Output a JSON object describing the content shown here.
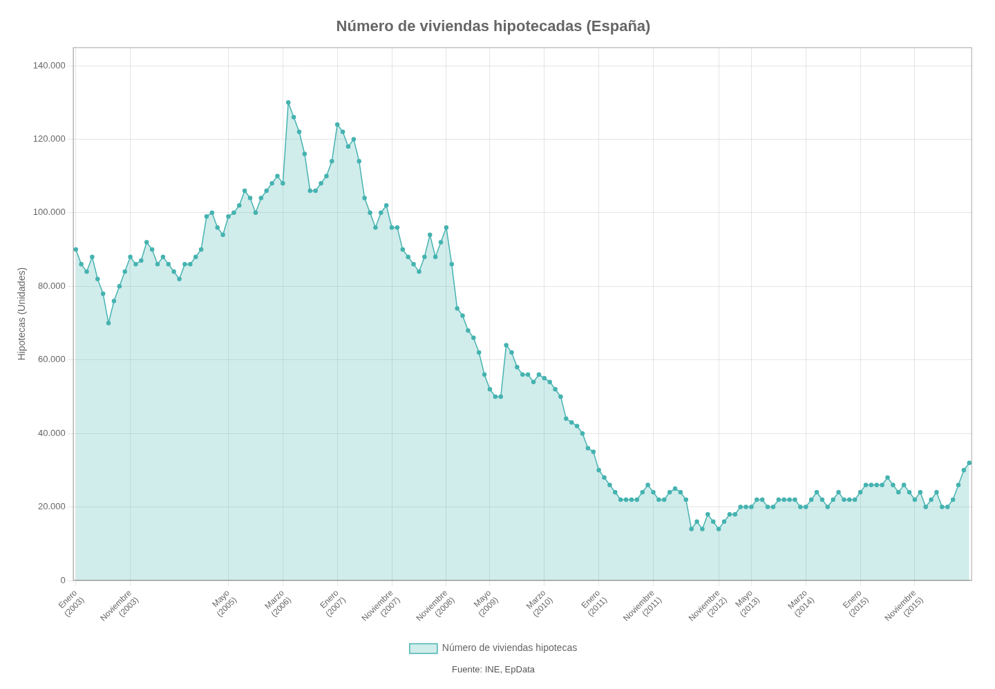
{
  "chart_data": {
    "type": "area",
    "title": "Número de viviendas hipotecadas (España)",
    "y_label": "Hipotecas (Unidades)",
    "source": "Fuente: INE, EpData",
    "categories": [
      "Enero\n(2003)",
      null,
      null,
      null,
      null,
      null,
      null,
      null,
      null,
      null,
      "Noviembre\n(2003)",
      null,
      null,
      null,
      null,
      null,
      null,
      null,
      null,
      null,
      null,
      null,
      null,
      null,
      null,
      null,
      null,
      null,
      "Mayo\n(2005)",
      null,
      null,
      null,
      null,
      null,
      null,
      null,
      null,
      null,
      "Marzo\n(2006)",
      null,
      null,
      null,
      null,
      null,
      null,
      null,
      null,
      null,
      "Enero\n(2007)",
      null,
      null,
      null,
      null,
      null,
      null,
      null,
      null,
      null,
      "Noviembre\n(2007)",
      null,
      null,
      null,
      null,
      null,
      null,
      null,
      null,
      null,
      "Noviembre\n(2008)",
      null,
      null,
      null,
      null,
      null,
      null,
      null,
      "Mayo\n(2009)",
      null,
      null,
      null,
      null,
      null,
      null,
      null,
      null,
      null,
      "Marzo\n(2010)",
      null,
      null,
      null,
      null,
      null,
      null,
      null,
      null,
      null,
      "Enero\n(2011)",
      null,
      null,
      null,
      null,
      null,
      null,
      null,
      null,
      null,
      "Noviembre\n(2011)",
      null,
      null,
      null,
      null,
      null,
      null,
      null,
      null,
      null,
      null,
      null,
      "Noviembre\n(2012)",
      null,
      null,
      null,
      null,
      null,
      "Mayo\n(2013)",
      null,
      null,
      null,
      null,
      null,
      null,
      null,
      null,
      null,
      "Marzo\n(2014)",
      null,
      null,
      null,
      null,
      null,
      null,
      null,
      null,
      null,
      "Enero\n(2015)",
      null,
      null,
      null,
      null,
      null,
      null,
      null,
      null,
      null,
      "Noviembre\n(2015)",
      null,
      null,
      null,
      null,
      null,
      null,
      null,
      null,
      null,
      null
    ],
    "series": [
      {
        "name": "Número de viviendas hipotecas",
        "color": "#45b3b0",
        "marker": "circle",
        "values": [
          90000,
          86000,
          84000,
          88000,
          82000,
          78000,
          70000,
          76000,
          80000,
          84000,
          88000,
          86000,
          87000,
          92000,
          90000,
          86000,
          88000,
          86000,
          84000,
          82000,
          86000,
          86000,
          88000,
          90000,
          99000,
          100000,
          96000,
          94000,
          99000,
          100000,
          102000,
          106000,
          104000,
          100000,
          104000,
          106000,
          108000,
          110000,
          108000,
          130000,
          126000,
          122000,
          116000,
          106000,
          106000,
          108000,
          110000,
          114000,
          124000,
          122000,
          118000,
          120000,
          114000,
          104000,
          100000,
          96000,
          100000,
          102000,
          96000,
          96000,
          90000,
          88000,
          86000,
          84000,
          88000,
          94000,
          88000,
          92000,
          96000,
          86000,
          74000,
          72000,
          68000,
          66000,
          62000,
          56000,
          52000,
          50000,
          50000,
          64000,
          62000,
          58000,
          56000,
          56000,
          54000,
          56000,
          55000,
          54000,
          52000,
          50000,
          44000,
          43000,
          42000,
          40000,
          36000,
          35000,
          30000,
          28000,
          26000,
          24000,
          22000,
          22000,
          22000,
          22000,
          24000,
          26000,
          24000,
          22000,
          22000,
          24000,
          25000,
          24000,
          22000,
          14000,
          16000,
          14000,
          18000,
          16000,
          14000,
          16000,
          18000,
          18000,
          20000,
          20000,
          20000,
          22000,
          22000,
          20000,
          20000,
          22000,
          22000,
          22000,
          22000,
          20000,
          20000,
          22000,
          24000,
          22000,
          20000,
          22000,
          24000,
          22000,
          22000,
          22000,
          24000,
          26000,
          26000,
          26000,
          26000,
          28000,
          26000,
          24000,
          26000,
          24000,
          22000,
          24000,
          20000,
          22000,
          24000,
          20000,
          20000,
          22000,
          26000,
          30000,
          32000
        ]
      }
    ],
    "ylim": [
      0,
      145000
    ],
    "yticks": [
      0,
      {
        "value": 20000,
        "label": "20.000"
      },
      {
        "value": 40000,
        "label": "40.000"
      },
      {
        "value": 60000,
        "label": "60.000"
      },
      {
        "value": 80000,
        "label": "80.000"
      },
      {
        "value": 100000,
        "label": "100.000"
      },
      {
        "value": 120000,
        "label": "120.000"
      },
      {
        "value": 140000,
        "label": "140.000"
      }
    ],
    "grid": true,
    "legend": "bottom"
  }
}
